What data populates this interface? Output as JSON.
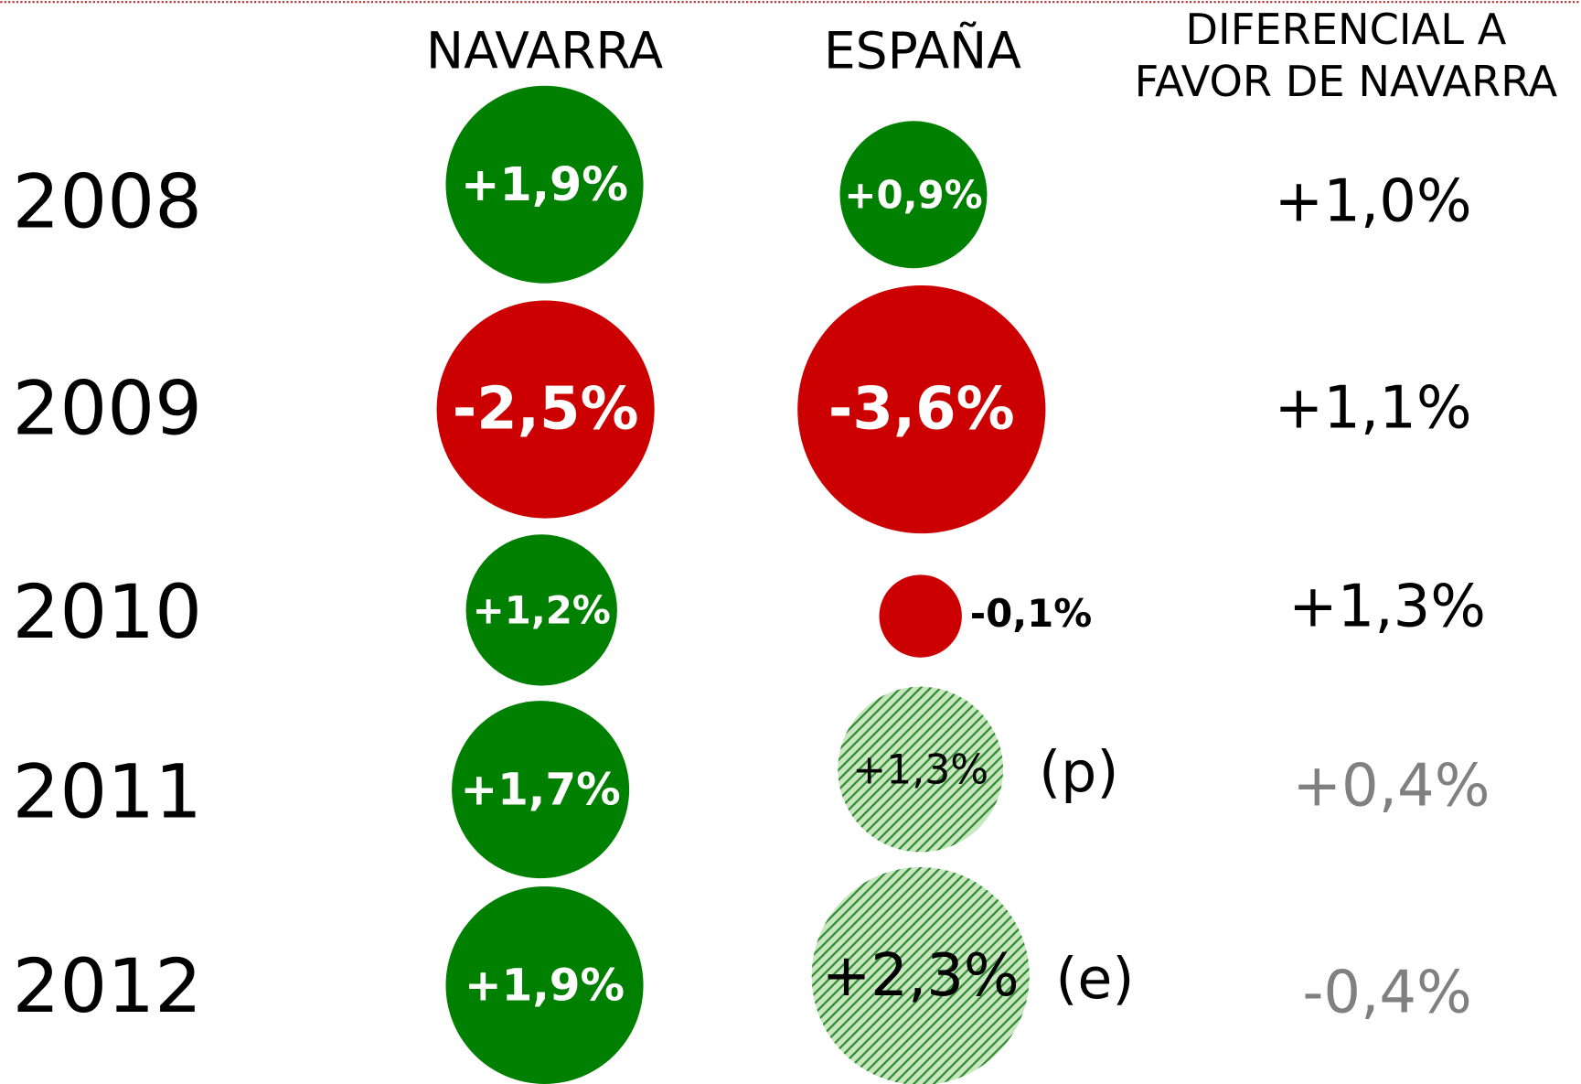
{
  "header": {
    "navarra": "NAVARRA",
    "espana": "ESPAÑA",
    "diff_line1": "DIFERENCIAL A",
    "diff_line2": "FAVOR DE NAVARRA"
  },
  "rows": [
    {
      "year": "2008",
      "navarra": "+1,9%",
      "espana": "+0,9%",
      "diff": "+1,0%"
    },
    {
      "year": "2009",
      "navarra": "-2,5%",
      "espana": "-3,6%",
      "diff": "+1,1%"
    },
    {
      "year": "2010",
      "navarra": "+1,2%",
      "espana": "-0,1%",
      "diff": "+1,3%"
    },
    {
      "year": "2011",
      "navarra": "+1,7%",
      "espana": "+1,3%",
      "note": "(p)",
      "diff": "+0,4%"
    },
    {
      "year": "2012",
      "navarra": "+1,9%",
      "espana": "+2,3%",
      "note": "(e)",
      "diff": "-0,4%"
    }
  ]
}
